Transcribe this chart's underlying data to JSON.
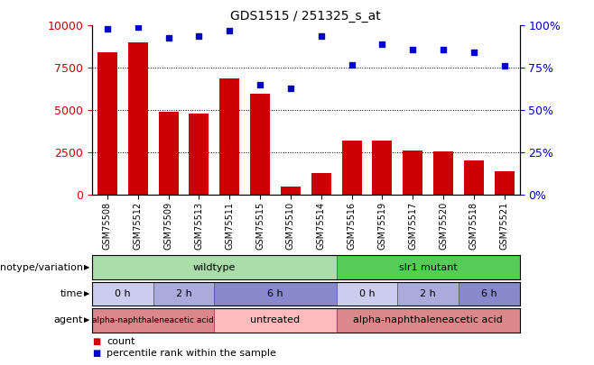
{
  "title": "GDS1515 / 251325_s_at",
  "samples": [
    "GSM75508",
    "GSM75512",
    "GSM75509",
    "GSM75513",
    "GSM75511",
    "GSM75515",
    "GSM75510",
    "GSM75514",
    "GSM75516",
    "GSM75519",
    "GSM75517",
    "GSM75520",
    "GSM75518",
    "GSM75521"
  ],
  "counts": [
    8400,
    9000,
    4900,
    4800,
    6900,
    6000,
    500,
    1300,
    3200,
    3200,
    2600,
    2550,
    2050,
    1400
  ],
  "percentile": [
    98,
    99,
    93,
    94,
    97,
    65,
    63,
    94,
    77,
    89,
    86,
    86,
    84,
    76
  ],
  "bar_color": "#cc0000",
  "dot_color": "#0000cc",
  "ylim_left": [
    0,
    10000
  ],
  "ylim_right": [
    0,
    100
  ],
  "yticks_left": [
    0,
    2500,
    5000,
    7500,
    10000
  ],
  "yticks_right": [
    0,
    25,
    50,
    75,
    100
  ],
  "grid_values": [
    2500,
    5000,
    7500
  ],
  "genotype_wildtype_label": "wildtype",
  "genotype_mutant_label": "slr1 mutant",
  "genotype_wildtype_color": "#aaddaa",
  "genotype_mutant_color": "#55cc55",
  "time_colors": {
    "0 h": "#ccccee",
    "2 h": "#aaaadd",
    "6 h": "#8888cc"
  },
  "time_block_defs": [
    {
      "label": "0 h",
      "start": 0,
      "end": 2
    },
    {
      "label": "2 h",
      "start": 2,
      "end": 4
    },
    {
      "label": "6 h",
      "start": 4,
      "end": 8
    },
    {
      "label": "0 h",
      "start": 8,
      "end": 10
    },
    {
      "label": "2 h",
      "start": 10,
      "end": 12
    },
    {
      "label": "6 h",
      "start": 12,
      "end": 14
    }
  ],
  "agent_block_defs": [
    {
      "label": "alpha-naphthaleneacetic acid",
      "start": 0,
      "end": 4,
      "color": "#dd8888",
      "fontsize": 6.5
    },
    {
      "label": "untreated",
      "start": 4,
      "end": 8,
      "color": "#ffbbbb",
      "fontsize": 8
    },
    {
      "label": "alpha-naphthaleneacetic acid",
      "start": 8,
      "end": 14,
      "color": "#dd8888",
      "fontsize": 8
    }
  ],
  "background_color": "#ffffff",
  "tick_label_color_left": "#cc0000",
  "tick_label_color_right": "#0000cc",
  "row_label_fontsize": 8,
  "legend_marker_size": 7,
  "legend_fontsize": 8
}
